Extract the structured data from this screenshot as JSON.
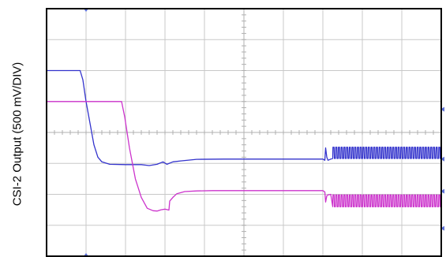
{
  "chart_data": {
    "type": "line",
    "title": "",
    "xlabel": "",
    "ylabel": "CSI-2 Output (500 mV/DIV)",
    "x_divisions": 10,
    "y_divisions": 8,
    "xlim": [
      0,
      10
    ],
    "ylim": [
      0,
      8
    ],
    "grid": true,
    "colors": {
      "background": "#ffffff",
      "frame": "#000000",
      "grid": "#c8c8c8",
      "ch1": "#3333cc",
      "ch2": "#cc33cc",
      "marker": "#5b6fd6"
    },
    "series": [
      {
        "x": [
          0,
          0.85,
          0.92,
          1.0,
          1.1,
          1.2,
          1.3,
          1.4,
          1.6,
          2.0,
          2.4,
          2.6,
          2.8,
          2.95,
          3.05,
          3.2,
          3.4,
          3.8,
          4.5,
          6.0,
          7.0,
          7.05,
          7.07,
          7.1,
          7.13,
          7.2
        ],
        "y": [
          6.0,
          6.0,
          5.7,
          5.0,
          4.3,
          3.6,
          3.2,
          3.05,
          2.97,
          2.96,
          2.96,
          2.93,
          2.97,
          3.05,
          2.97,
          3.05,
          3.08,
          3.13,
          3.14,
          3.14,
          3.14,
          3.1,
          3.5,
          3.2,
          3.1,
          3.14
        ],
        "burst": {
          "x_start": 7.25,
          "x_end": 10.0,
          "low": 3.16,
          "high": 3.52,
          "cycles": 40
        }
      },
      {
        "x": [
          0,
          1.9,
          1.98,
          2.1,
          2.25,
          2.4,
          2.55,
          2.7,
          2.8,
          2.9,
          3.0,
          3.1,
          3.12,
          3.2,
          3.3,
          3.5,
          3.8,
          4.2,
          5.0,
          6.0,
          7.0,
          7.05,
          7.07,
          7.1,
          7.13,
          7.2
        ],
        "y": [
          5.0,
          5.0,
          4.5,
          3.5,
          2.5,
          1.9,
          1.55,
          1.47,
          1.46,
          1.5,
          1.52,
          1.49,
          1.78,
          1.9,
          2.02,
          2.09,
          2.11,
          2.12,
          2.12,
          2.12,
          2.12,
          2.08,
          1.75,
          1.95,
          1.98,
          2.0
        ],
        "burst": {
          "x_start": 7.25,
          "x_end": 10.0,
          "low": 1.6,
          "high": 1.98,
          "cycles": 40
        }
      }
    ]
  }
}
